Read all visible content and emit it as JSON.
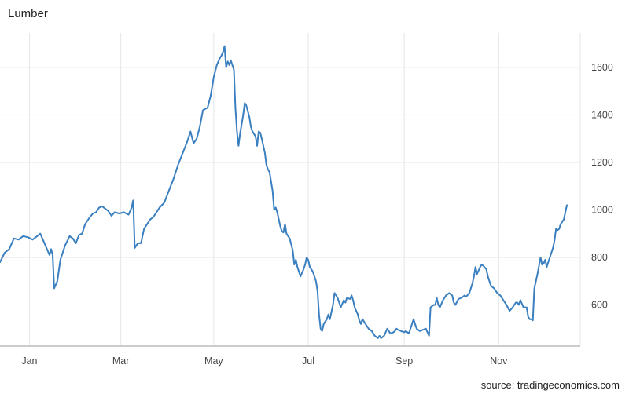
{
  "title": "Lumber",
  "source": "source: tradingeconomics.com",
  "colors": {
    "line": "#3a7fc0",
    "grid": "#e6e6e6",
    "axis": "#999999"
  },
  "chart_data": {
    "type": "line",
    "title": "Lumber",
    "xlabel": "",
    "ylabel": "",
    "ylim": [
      430,
      1745
    ],
    "xlim": [
      0,
      355
    ],
    "grid": true,
    "y_ticks": [
      600,
      800,
      1000,
      1200,
      1400,
      1600
    ],
    "x_ticks": [
      {
        "label": "Jan",
        "x": 19
      },
      {
        "label": "Mar",
        "x": 78
      },
      {
        "label": "May",
        "x": 138
      },
      {
        "label": "Jul",
        "x": 199
      },
      {
        "label": "Sep",
        "x": 261
      },
      {
        "label": "Nov",
        "x": 322
      }
    ],
    "series": [
      {
        "values": [
          [
            0,
            780
          ],
          [
            3,
            820
          ],
          [
            6,
            835
          ],
          [
            9,
            880
          ],
          [
            12,
            875
          ],
          [
            15,
            890
          ],
          [
            18,
            885
          ],
          [
            21,
            875
          ],
          [
            24,
            890
          ],
          [
            26,
            900
          ],
          [
            28,
            870
          ],
          [
            30,
            840
          ],
          [
            32,
            810
          ],
          [
            33,
            835
          ],
          [
            34,
            810
          ],
          [
            35,
            670
          ],
          [
            37,
            700
          ],
          [
            39,
            790
          ],
          [
            42,
            850
          ],
          [
            45,
            890
          ],
          [
            47,
            880
          ],
          [
            49,
            860
          ],
          [
            51,
            895
          ],
          [
            53,
            900
          ],
          [
            55,
            940
          ],
          [
            58,
            970
          ],
          [
            60,
            985
          ],
          [
            62,
            990
          ],
          [
            64,
            1010
          ],
          [
            66,
            1015
          ],
          [
            68,
            1005
          ],
          [
            70,
            995
          ],
          [
            72,
            975
          ],
          [
            74,
            990
          ],
          [
            77,
            985
          ],
          [
            80,
            990
          ],
          [
            83,
            980
          ],
          [
            85,
            1010
          ],
          [
            86,
            1040
          ],
          [
            87,
            840
          ],
          [
            89,
            860
          ],
          [
            91,
            860
          ],
          [
            93,
            920
          ],
          [
            95,
            940
          ],
          [
            97,
            960
          ],
          [
            99,
            970
          ],
          [
            101,
            990
          ],
          [
            103,
            1010
          ],
          [
            106,
            1030
          ],
          [
            109,
            1080
          ],
          [
            112,
            1130
          ],
          [
            115,
            1190
          ],
          [
            118,
            1240
          ],
          [
            121,
            1290
          ],
          [
            123,
            1330
          ],
          [
            125,
            1280
          ],
          [
            127,
            1300
          ],
          [
            129,
            1350
          ],
          [
            131,
            1420
          ],
          [
            134,
            1430
          ],
          [
            136,
            1480
          ],
          [
            138,
            1560
          ],
          [
            140,
            1610
          ],
          [
            142,
            1640
          ],
          [
            143,
            1650
          ],
          [
            144,
            1665
          ],
          [
            145,
            1690
          ],
          [
            146,
            1600
          ],
          [
            147,
            1625
          ],
          [
            148,
            1610
          ],
          [
            149,
            1630
          ],
          [
            151,
            1590
          ],
          [
            152,
            1430
          ],
          [
            153,
            1330
          ],
          [
            154,
            1270
          ],
          [
            155,
            1320
          ],
          [
            157,
            1400
          ],
          [
            158,
            1450
          ],
          [
            159,
            1440
          ],
          [
            161,
            1390
          ],
          [
            162,
            1350
          ],
          [
            163,
            1330
          ],
          [
            165,
            1310
          ],
          [
            166,
            1270
          ],
          [
            167,
            1330
          ],
          [
            168,
            1325
          ],
          [
            169,
            1300
          ],
          [
            171,
            1240
          ],
          [
            172,
            1190
          ],
          [
            173,
            1170
          ],
          [
            174,
            1160
          ],
          [
            176,
            1080
          ],
          [
            177,
            1000
          ],
          [
            178,
            1010
          ],
          [
            179,
            990
          ],
          [
            181,
            930
          ],
          [
            182,
            910
          ],
          [
            183,
            905
          ],
          [
            184,
            940
          ],
          [
            185,
            900
          ],
          [
            187,
            880
          ],
          [
            189,
            830
          ],
          [
            190,
            770
          ],
          [
            191,
            790
          ],
          [
            192,
            760
          ],
          [
            194,
            720
          ],
          [
            196,
            750
          ],
          [
            197,
            770
          ],
          [
            198,
            800
          ],
          [
            199,
            790
          ],
          [
            200,
            760
          ],
          [
            202,
            740
          ],
          [
            204,
            700
          ],
          [
            205,
            660
          ],
          [
            206,
            560
          ],
          [
            207,
            500
          ],
          [
            208,
            490
          ],
          [
            209,
            520
          ],
          [
            211,
            540
          ],
          [
            212,
            560
          ],
          [
            213,
            540
          ],
          [
            215,
            600
          ],
          [
            216,
            650
          ],
          [
            217,
            640
          ],
          [
            218,
            630
          ],
          [
            220,
            590
          ],
          [
            222,
            620
          ],
          [
            223,
            610
          ],
          [
            224,
            630
          ],
          [
            226,
            625
          ],
          [
            227,
            640
          ],
          [
            228,
            620
          ],
          [
            229,
            590
          ],
          [
            231,
            560
          ],
          [
            232,
            535
          ],
          [
            233,
            520
          ],
          [
            234,
            540
          ],
          [
            236,
            520
          ],
          [
            238,
            500
          ],
          [
            240,
            490
          ],
          [
            241,
            480
          ],
          [
            242,
            470
          ],
          [
            243,
            465
          ],
          [
            244,
            460
          ],
          [
            245,
            470
          ],
          [
            246,
            460
          ],
          [
            248,
            470
          ],
          [
            249,
            485
          ],
          [
            250,
            500
          ],
          [
            251,
            490
          ],
          [
            252,
            480
          ],
          [
            254,
            485
          ],
          [
            255,
            490
          ],
          [
            256,
            500
          ],
          [
            257,
            495
          ],
          [
            259,
            490
          ],
          [
            261,
            485
          ],
          [
            262,
            490
          ],
          [
            264,
            480
          ],
          [
            265,
            500
          ],
          [
            266,
            520
          ],
          [
            267,
            540
          ],
          [
            268,
            520
          ],
          [
            269,
            500
          ],
          [
            271,
            490
          ],
          [
            273,
            495
          ],
          [
            275,
            500
          ],
          [
            277,
            470
          ],
          [
            278,
            590
          ],
          [
            280,
            600
          ],
          [
            281,
            600
          ],
          [
            282,
            630
          ],
          [
            283,
            600
          ],
          [
            284,
            590
          ],
          [
            286,
            620
          ],
          [
            288,
            640
          ],
          [
            290,
            650
          ],
          [
            292,
            640
          ],
          [
            293,
            610
          ],
          [
            294,
            600
          ],
          [
            296,
            625
          ],
          [
            298,
            630
          ],
          [
            300,
            640
          ],
          [
            301,
            635
          ],
          [
            303,
            650
          ],
          [
            305,
            690
          ],
          [
            306,
            720
          ],
          [
            307,
            760
          ],
          [
            308,
            730
          ],
          [
            310,
            760
          ],
          [
            311,
            770
          ],
          [
            312,
            765
          ],
          [
            314,
            750
          ],
          [
            315,
            720
          ],
          [
            316,
            700
          ],
          [
            317,
            680
          ],
          [
            319,
            670
          ],
          [
            321,
            650
          ],
          [
            323,
            640
          ],
          [
            325,
            620
          ],
          [
            327,
            600
          ],
          [
            329,
            575
          ],
          [
            331,
            590
          ],
          [
            333,
            610
          ],
          [
            334,
            610
          ],
          [
            335,
            600
          ],
          [
            336,
            620
          ],
          [
            338,
            590
          ],
          [
            339,
            590
          ],
          [
            340,
            590
          ],
          [
            341,
            550
          ],
          [
            342,
            540
          ],
          [
            343,
            540
          ],
          [
            344,
            535
          ],
          [
            345,
            670
          ],
          [
            347,
            730
          ],
          [
            349,
            800
          ],
          [
            350,
            770
          ],
          [
            351,
            775
          ],
          [
            352,
            790
          ],
          [
            353,
            760
          ],
          [
            355,
            800
          ],
          [
            357,
            840
          ],
          [
            358,
            870
          ],
          [
            359,
            920
          ],
          [
            360,
            915
          ],
          [
            361,
            920
          ],
          [
            362,
            940
          ],
          [
            363,
            950
          ],
          [
            364,
            960
          ],
          [
            365,
            990
          ],
          [
            366,
            1020
          ]
        ]
      }
    ]
  }
}
